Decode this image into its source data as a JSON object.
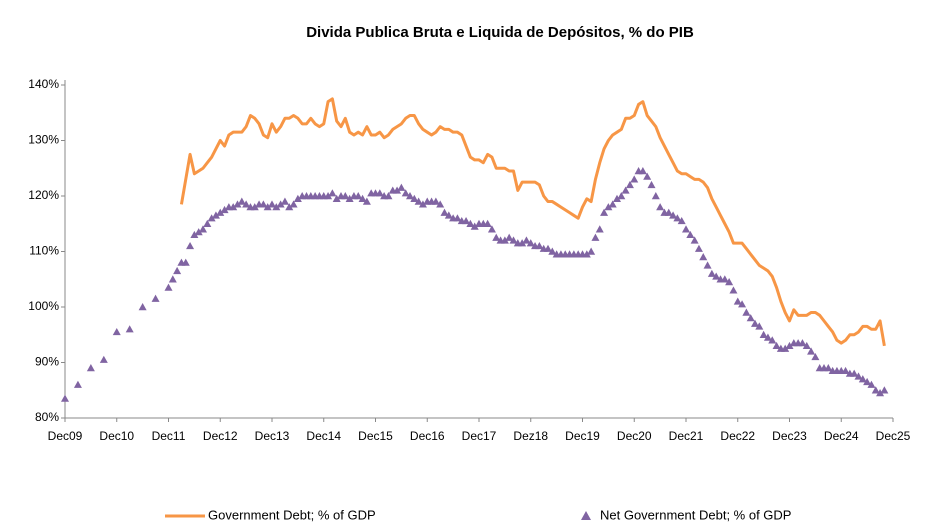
{
  "chart_data": {
    "type": "line",
    "title": "Divida Publica Bruta e Liquida de Depósitos, % do PIB",
    "categories": [
      "Dec09",
      null,
      null,
      null,
      null,
      null,
      null,
      null,
      null,
      null,
      null,
      null,
      "Dec10",
      null,
      null,
      null,
      null,
      null,
      null,
      null,
      null,
      null,
      null,
      null,
      "Dec11",
      null,
      null,
      null,
      null,
      null,
      null,
      null,
      null,
      null,
      null,
      null,
      "Dec12",
      null,
      null,
      null,
      null,
      null,
      null,
      null,
      null,
      null,
      null,
      null,
      "Dec13",
      null,
      null,
      null,
      null,
      null,
      null,
      null,
      null,
      null,
      null,
      null,
      "Dec14",
      null,
      null,
      null,
      null,
      null,
      null,
      null,
      null,
      null,
      null,
      null,
      "Dec15",
      null,
      null,
      null,
      null,
      null,
      null,
      null,
      null,
      null,
      null,
      null,
      "Dec16",
      null,
      null,
      null,
      null,
      null,
      null,
      null,
      null,
      null,
      null,
      null,
      "Dec17",
      null,
      null,
      null,
      null,
      null,
      null,
      null,
      null,
      null,
      null,
      null,
      "Dez18",
      null,
      null,
      null,
      null,
      null,
      null,
      null,
      null,
      null,
      null,
      null,
      "Dec19",
      null,
      null,
      null,
      null,
      null,
      null,
      null,
      null,
      null,
      null,
      null,
      "Dec20",
      null,
      null,
      null,
      null,
      null,
      null,
      null,
      null,
      null,
      null,
      null,
      "Dec21",
      null,
      null,
      null,
      null,
      null,
      null,
      null,
      null,
      null,
      null,
      null,
      "Dec22",
      null,
      null,
      null,
      null,
      null,
      null,
      null,
      null,
      null,
      null,
      null,
      "Dec23",
      null,
      null,
      null,
      null,
      null,
      null,
      null,
      null,
      null,
      null,
      null,
      "Dec24",
      null,
      null,
      null,
      null,
      null,
      null,
      null,
      null,
      null,
      null,
      null,
      "Dec25"
    ],
    "series": [
      {
        "name": "Government Debt; % of GDP",
        "color": "#f79646",
        "style": "line",
        "values": [
          null,
          null,
          null,
          null,
          null,
          null,
          null,
          null,
          null,
          null,
          null,
          null,
          null,
          null,
          null,
          null,
          null,
          null,
          null,
          null,
          null,
          null,
          null,
          null,
          null,
          null,
          null,
          118.5,
          123,
          127.5,
          124,
          124.5,
          125,
          126,
          127,
          128.5,
          130,
          129,
          131,
          131.5,
          131.5,
          131.5,
          132.5,
          134.5,
          134,
          133,
          131,
          130.5,
          133,
          131.5,
          132.5,
          134,
          134,
          134.5,
          134,
          133,
          133,
          134,
          133,
          132.5,
          133,
          137,
          137.5,
          133.5,
          132.5,
          134,
          131.5,
          131,
          131.5,
          131,
          132.5,
          131,
          131,
          131.5,
          130.5,
          131,
          132,
          132.5,
          133,
          134,
          134.5,
          134.5,
          133,
          132,
          131.5,
          131,
          131.5,
          132.5,
          132,
          132,
          131.5,
          131.5,
          131,
          129,
          127,
          126.5,
          126.5,
          126,
          127.5,
          127,
          125,
          125,
          125,
          124.5,
          124.5,
          121,
          122.5,
          122.5,
          122.5,
          122.5,
          122,
          120,
          119,
          119,
          118.5,
          118,
          117.5,
          117,
          116.5,
          116,
          118,
          119.5,
          119,
          123,
          126,
          128.5,
          130,
          131,
          131.5,
          132,
          134,
          134,
          134.5,
          136.5,
          137,
          134.5,
          133.5,
          132.5,
          130.5,
          129,
          127.5,
          126,
          124.5,
          124,
          124,
          123.5,
          123,
          123,
          122.5,
          121.5,
          119.5,
          118,
          116.5,
          115,
          113.5,
          111.5,
          111.5,
          111.5,
          110.5,
          109.5,
          108.5,
          107.5,
          107,
          106.5,
          105.5,
          103.5,
          101,
          99,
          97.5,
          99.5,
          98.5,
          98.5,
          98.5,
          99,
          99,
          98.5,
          97.5,
          96.5,
          95.5,
          94,
          93.5,
          94,
          95,
          95,
          95.5,
          96.5,
          96.5,
          96,
          96,
          97.5,
          93,
          null,
          null
        ]
      },
      {
        "name": "Net Government Debt; % of GDP",
        "color": "#8064a2",
        "style": "marker",
        "marker": "triangle",
        "values": [
          83.5,
          null,
          null,
          86,
          null,
          null,
          89,
          null,
          null,
          90.5,
          null,
          null,
          95.5,
          null,
          null,
          96,
          null,
          null,
          100,
          null,
          null,
          101.5,
          null,
          null,
          103.5,
          105,
          106.5,
          108,
          108,
          111,
          113,
          113.5,
          114,
          115,
          116,
          116.5,
          117,
          117.5,
          118,
          118,
          118.5,
          119,
          118.5,
          118,
          118,
          118.5,
          118.5,
          118,
          118.5,
          118,
          118.5,
          119,
          118,
          118.5,
          119.5,
          120,
          120,
          120,
          120,
          120,
          120,
          120,
          120.5,
          119.5,
          120,
          120,
          119.5,
          120,
          120,
          119.5,
          119,
          120.5,
          120.5,
          120.5,
          120,
          120,
          121,
          121,
          121.5,
          120.5,
          120,
          119.5,
          119,
          118.5,
          119,
          119,
          119,
          118.5,
          117,
          116.5,
          116,
          116,
          115.5,
          115.5,
          115,
          114.5,
          115,
          115,
          115,
          114,
          112.5,
          112,
          112,
          112.5,
          112,
          111.5,
          111.5,
          112,
          111.5,
          111,
          111,
          110.5,
          110.5,
          110,
          109.5,
          109.5,
          109.5,
          109.5,
          109.5,
          109.5,
          109.5,
          109.5,
          110,
          112.5,
          114,
          117,
          118,
          118.5,
          119.5,
          120,
          121,
          122,
          123,
          124.5,
          124.5,
          123.5,
          122,
          120,
          118,
          117,
          117,
          116.5,
          116,
          115.5,
          114,
          113,
          112,
          110.5,
          109,
          107.5,
          106,
          105.5,
          105,
          105,
          104.5,
          103,
          101,
          100.5,
          99,
          98,
          97,
          96.5,
          95,
          94.5,
          94,
          93,
          92.5,
          92.5,
          93,
          93.5,
          93.5,
          93.5,
          93,
          92,
          91,
          89,
          89,
          89,
          88.5,
          88.5,
          88.5,
          88.5,
          88,
          88,
          87.5,
          87,
          86.5,
          86,
          85,
          84.5,
          85,
          null,
          null
        ]
      }
    ],
    "ylim": [
      80,
      140
    ],
    "yticks": [
      {
        "value": 80,
        "label": "80%"
      },
      {
        "value": 90,
        "label": "90%"
      },
      {
        "value": 100,
        "label": "100%"
      },
      {
        "value": 110,
        "label": "110%"
      },
      {
        "value": 120,
        "label": "120%"
      },
      {
        "value": 130,
        "label": "130%"
      },
      {
        "value": 140,
        "label": "140%"
      }
    ],
    "grid": false
  }
}
